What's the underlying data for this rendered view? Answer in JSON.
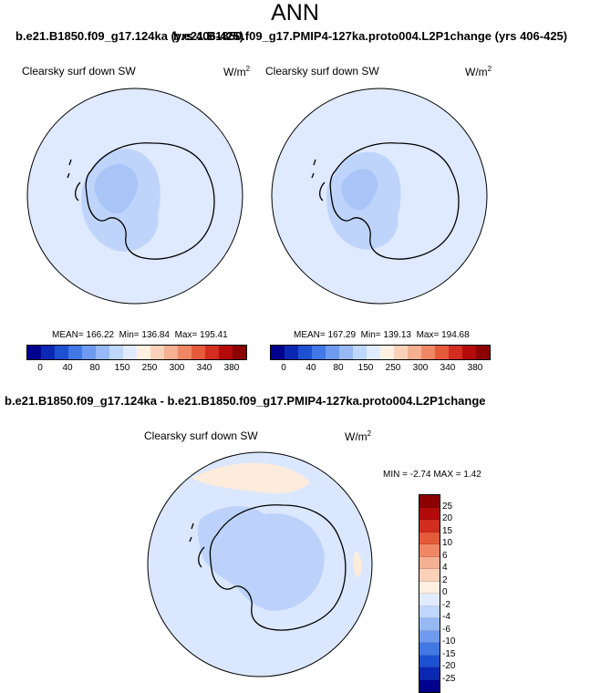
{
  "header": {
    "title": "ANN"
  },
  "panels": [
    {
      "case_title": "b.e21.B1850.f09_g17.124ka (yrs 406-425)",
      "variable": "Clearsky surf down SW",
      "units_base": "W/m",
      "units_exp": "2",
      "stats": {
        "mean": "166.22",
        "min": "136.84",
        "max": "195.41"
      }
    },
    {
      "case_title": "b.e21.B1850.f09_g17.PMIP4-127ka.proto004.L2P1change (yrs 406-425)",
      "variable": "Clearsky surf down SW",
      "units_base": "W/m",
      "units_exp": "2",
      "stats": {
        "mean": "167.29",
        "min": "139.13",
        "max": "194.68"
      }
    }
  ],
  "stats_labels": {
    "mean": "MEAN=",
    "min": "Min=",
    "max": "Max="
  },
  "colorbar": {
    "colors": [
      "#00008f",
      "#0a28b4",
      "#1e50d2",
      "#4178e6",
      "#6e9bf0",
      "#96b9f5",
      "#bed7fa",
      "#e1ebff",
      "#fff0e1",
      "#fad2b9",
      "#f5af91",
      "#f08764",
      "#e65a3c",
      "#d22d1e",
      "#b40a0a",
      "#8c0000"
    ],
    "labels": [
      "0",
      "40",
      "80",
      "150",
      "250",
      "300",
      "340",
      "380"
    ]
  },
  "difference": {
    "title": "b.e21.B1850.f09_g17.124ka - b.e21.B1850.f09_g17.PMIP4-127ka.proto004.L2P1change",
    "variable": "Clearsky surf down SW",
    "units_base": "W/m",
    "units_exp": "2",
    "min_label": "MIN =",
    "min": "-2.74",
    "max_label": "MAX =",
    "max": "1.42",
    "colorbar": {
      "colors": [
        "#8c0000",
        "#b40a0a",
        "#d22d1e",
        "#e65a3c",
        "#f08764",
        "#f5af91",
        "#fad2b9",
        "#fff0e1",
        "#e1ebff",
        "#bed7fa",
        "#96b9f5",
        "#6e9bf0",
        "#4178e6",
        "#1e50d2",
        "#0a28b4",
        "#00008f"
      ],
      "labels": [
        "25",
        "20",
        "15",
        "10",
        "6",
        "4",
        "2",
        "0",
        "-2",
        "-4",
        "-6",
        "-10",
        "-15",
        "-20",
        "-25"
      ]
    }
  },
  "map_colors": {
    "background": "#dfe9ff",
    "low": "#bfd4fb",
    "lower": "#a9c4f6",
    "diff_background": "#dbe7fe",
    "diff_negative": "#bcd2fb",
    "diff_positive": "#fdecdb"
  }
}
